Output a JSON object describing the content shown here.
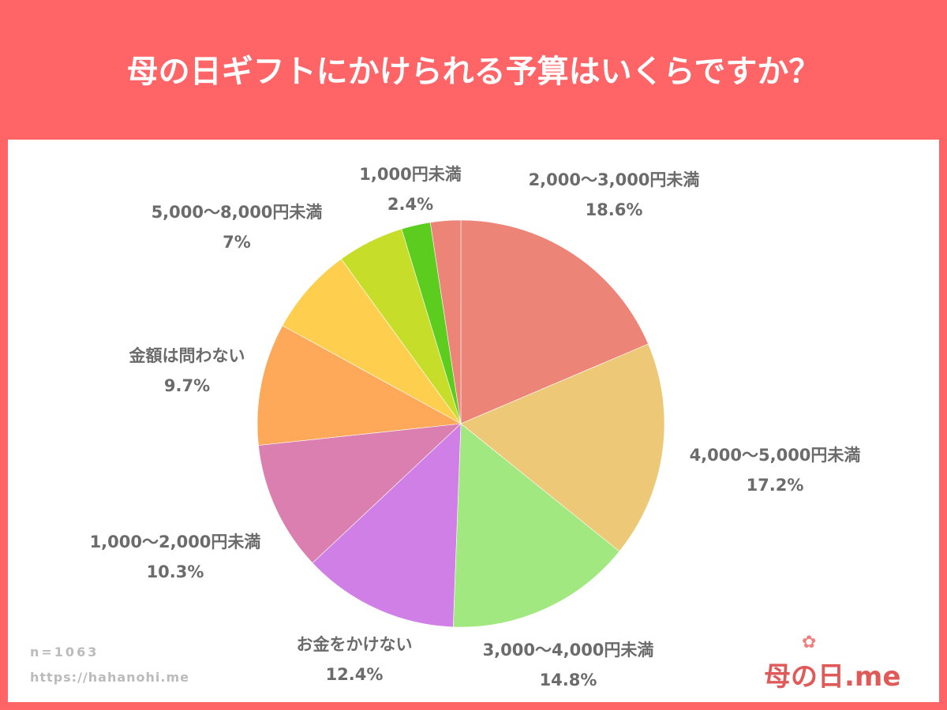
{
  "title": "母の日ギフトにかけられる予算はいくらですか？",
  "footer": {
    "n": "n=1063",
    "url": "https://hahanohi.me",
    "logo": "母の日.me"
  },
  "chart_data": {
    "type": "pie",
    "title": "母の日ギフトにかけられる予算はいくらですか？",
    "start": "top",
    "direction": "clockwise",
    "slices": [
      {
        "label": "2,000〜3,000円未満",
        "value": 18.6,
        "display": "18.6%",
        "color": "#ec8577"
      },
      {
        "label": "4,000〜5,000円未満",
        "value": 17.2,
        "display": "17.2%",
        "color": "#ecc877"
      },
      {
        "label": "3,000〜4,000円未満",
        "value": 14.8,
        "display": "14.8%",
        "color": "#a0e87f"
      },
      {
        "label": "お金をかけない",
        "value": 12.4,
        "display": "12.4%",
        "color": "#cf7fe6"
      },
      {
        "label": "1,000〜2,000円未満",
        "value": 10.3,
        "display": "10.3%",
        "color": "#db7fb0"
      },
      {
        "label": "金額は問わない",
        "value": 9.7,
        "display": "9.7%",
        "color": "#fea85a"
      },
      {
        "label": "5,000〜8,000円未満",
        "value": 7,
        "display": "7%",
        "color": "#fecf4f"
      },
      {
        "label": "",
        "value": 5.3,
        "display": "",
        "color": "#c6dd2a"
      },
      {
        "label": "",
        "value": 2.3,
        "display": "",
        "color": "#5ccc1f"
      },
      {
        "label": "1,000円未満",
        "value": 2.4,
        "display": "2.4%",
        "color": "#ec8577"
      }
    ]
  }
}
